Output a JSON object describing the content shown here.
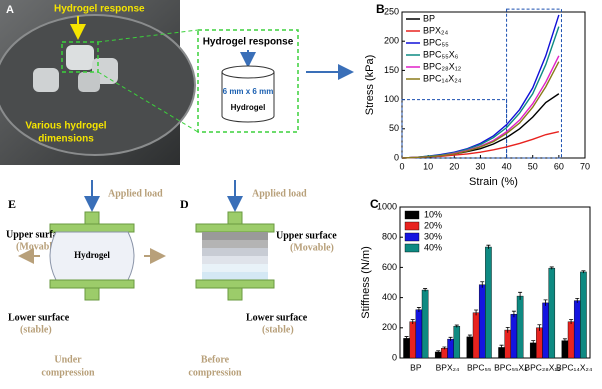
{
  "panel_a": {
    "label": "A",
    "response": "Hydrogel response",
    "dimensions": [
      "Various hydrogel",
      "dimensions"
    ],
    "inset_title": "Hydrogel response",
    "inset_size": "6 mm x 6 mm",
    "inset_label": "Hydrogel"
  },
  "panel_e": {
    "label": "E",
    "load": "Applied load",
    "upper": "Upper surface",
    "upper_state": "(Movable)",
    "gel": "Hydrogel",
    "lower": "Lower surface",
    "lower_state": "(stable)",
    "caption": [
      "Under",
      "compression"
    ]
  },
  "panel_d": {
    "label": "D",
    "load": "Applied load",
    "upper": "Upper surface",
    "upper_state": "(Movable)",
    "lower": "Lower surface",
    "lower_state": "(stable)",
    "caption": [
      "Before",
      "compression"
    ]
  },
  "chart_data": [
    {
      "type": "line",
      "label": "B",
      "x_label": "Strain (%)",
      "y_label": "Stress (kPa)",
      "x": [
        0,
        5,
        10,
        15,
        20,
        25,
        30,
        35,
        40,
        45,
        50,
        55,
        60
      ],
      "xlim": [
        0,
        70
      ],
      "xticks": [
        0,
        10,
        20,
        30,
        40,
        50,
        60,
        70
      ],
      "ylim": [
        0,
        250
      ],
      "yticks": [
        0,
        50,
        100,
        150,
        200,
        250
      ],
      "zoom_boxes": [
        {
          "xlim": [
            0,
            40
          ],
          "ylim": [
            0,
            100
          ]
        },
        {
          "xlim": [
            40,
            61
          ],
          "ylim": [
            0,
            255
          ]
        }
      ],
      "series": [
        {
          "name": "BP",
          "color": "#000000",
          "values": [
            0,
            1,
            2,
            4,
            7,
            11,
            16,
            24,
            35,
            50,
            70,
            95,
            110
          ]
        },
        {
          "name": "BPX₂₄",
          "color": "#e8231f",
          "values": [
            0,
            1,
            2,
            3,
            5,
            7,
            10,
            14,
            19,
            25,
            32,
            40,
            45
          ]
        },
        {
          "name": "BPC₅₅",
          "color": "#1010d8",
          "values": [
            0,
            1,
            3,
            6,
            10,
            16,
            25,
            38,
            57,
            83,
            120,
            175,
            245
          ]
        },
        {
          "name": "BPC₅₅X₆",
          "color": "#0e8a82",
          "values": [
            0,
            1,
            3,
            5,
            9,
            15,
            23,
            35,
            52,
            77,
            110,
            160,
            225
          ]
        },
        {
          "name": "BPC₂₈X₁₂",
          "color": "#e020c8",
          "values": [
            0,
            1,
            2,
            4,
            8,
            13,
            20,
            30,
            45,
            65,
            93,
            130,
            175
          ]
        },
        {
          "name": "BPC₁₄X₂₄",
          "color": "#8a7a1a",
          "values": [
            0,
            1,
            2,
            4,
            7,
            12,
            19,
            28,
            42,
            60,
            87,
            122,
            165
          ]
        }
      ]
    },
    {
      "type": "bar",
      "label": "C",
      "y_label": "Stiffness (N/m)",
      "categories": [
        "BP",
        "BPX₂₄",
        "BPC₅₅",
        "BPC₅₅X₆",
        "BPC₂₈X₁₂",
        "BPC₁₄X₂₄"
      ],
      "ylim": [
        0,
        1000
      ],
      "yticks": [
        0,
        200,
        400,
        600,
        800,
        1000
      ],
      "series": [
        {
          "name": "10%",
          "color": "#000000",
          "values": [
            130,
            40,
            140,
            70,
            100,
            115
          ],
          "errors": [
            12,
            8,
            12,
            15,
            15,
            12
          ]
        },
        {
          "name": "20%",
          "color": "#e8231f",
          "values": [
            240,
            65,
            300,
            185,
            200,
            240
          ],
          "errors": [
            15,
            8,
            18,
            18,
            20,
            15
          ]
        },
        {
          "name": "30%",
          "color": "#1414e0",
          "values": [
            320,
            125,
            485,
            290,
            365,
            380
          ],
          "errors": [
            15,
            12,
            20,
            20,
            20,
            15
          ]
        },
        {
          "name": "40%",
          "color": "#0e8a82",
          "values": [
            450,
            210,
            735,
            410,
            595,
            570
          ],
          "errors": [
            10,
            8,
            12,
            25,
            8,
            8
          ]
        }
      ]
    }
  ]
}
